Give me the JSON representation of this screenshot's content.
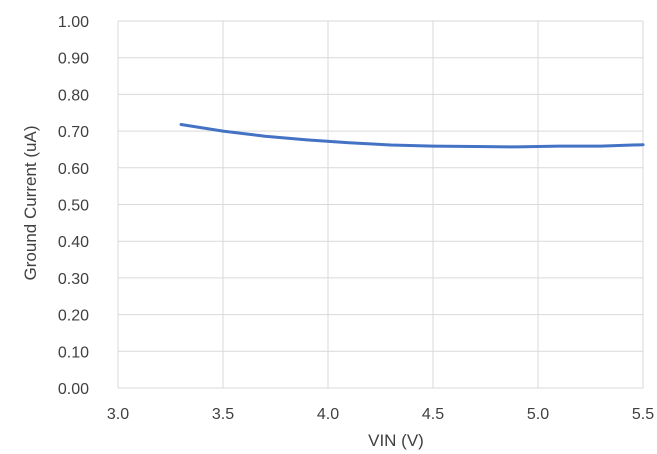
{
  "chart_data": {
    "type": "line",
    "title": "",
    "xlabel": "VIN (V)",
    "ylabel": "Ground Current (uA)",
    "xlim": [
      3.0,
      5.5
    ],
    "ylim": [
      0.0,
      1.0
    ],
    "x_ticks": [
      "3.0",
      "3.5",
      "4.0",
      "4.5",
      "5.0",
      "5.5"
    ],
    "y_ticks": [
      "0.00",
      "0.10",
      "0.20",
      "0.30",
      "0.40",
      "0.50",
      "0.60",
      "0.70",
      "0.80",
      "0.90",
      "1.00"
    ],
    "grid": true,
    "series_color": "#4472C4",
    "grid_color": "#d9d9d9",
    "series": [
      {
        "x": [
          3.3,
          3.5,
          3.7,
          3.9,
          4.1,
          4.3,
          4.5,
          4.7,
          4.9,
          5.1,
          5.3,
          5.5
        ],
        "y": [
          0.718,
          0.7,
          0.686,
          0.676,
          0.668,
          0.662,
          0.659,
          0.658,
          0.657,
          0.659,
          0.659,
          0.663
        ]
      }
    ]
  }
}
